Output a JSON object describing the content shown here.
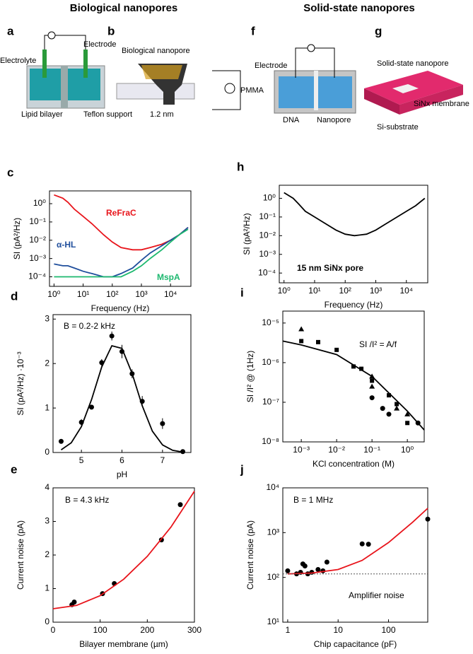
{
  "headings": [
    "Biological nanopores",
    "Solid-state nanopores"
  ],
  "panels": [
    {
      "label": "a",
      "texts": [
        "Electrode",
        "Electrolyte",
        "Lipid bilayer",
        "Teflon support"
      ]
    },
    {
      "label": "b",
      "texts": [
        "Biological nanopore",
        "1.2 nm"
      ]
    },
    {
      "label": "f",
      "texts": [
        "Electrode",
        "PMMA",
        "DNA",
        "Nanopore"
      ]
    },
    {
      "label": "g",
      "texts": [
        "Solid-state nanopore",
        "SiNx membrane",
        "Si-substrate"
      ]
    }
  ],
  "chart_data": [
    {
      "type": "line",
      "label": "c",
      "x_label": "Frequency (Hz)",
      "y_label": "SI (pA²/Hz)",
      "xscale": "log",
      "yscale": "log",
      "xlim": [
        0.7,
        50000
      ],
      "ylim": [
        3e-05,
        5
      ],
      "xticks": [
        {
          "value": 1,
          "label": "10⁰"
        },
        {
          "value": 10,
          "label": "10¹"
        },
        {
          "value": 100,
          "label": "10²"
        },
        {
          "value": 1000,
          "label": "10³"
        },
        {
          "value": 10000,
          "label": "10⁴"
        }
      ],
      "yticks": [
        {
          "value": 0.0001,
          "label": "10⁻⁴"
        },
        {
          "value": 0.001,
          "label": "10⁻³"
        },
        {
          "value": 0.01,
          "label": "10⁻²"
        },
        {
          "value": 0.1,
          "label": "10⁻¹"
        },
        {
          "value": 1,
          "label": "10⁰"
        }
      ],
      "x": [
        1,
        2,
        3,
        5,
        10,
        20,
        50,
        100,
        200,
        500,
        1000,
        2000,
        5000,
        10000,
        20000,
        40000
      ],
      "series": [
        {
          "name": "ReFraC",
          "color": "#e8141b",
          "values": [
            3,
            2,
            1.2,
            0.5,
            0.2,
            0.08,
            0.02,
            0.008,
            0.004,
            0.003,
            0.003,
            0.004,
            0.006,
            0.01,
            0.02,
            0.05
          ]
        },
        {
          "name": "α-HL",
          "color": "#1f4e9c",
          "values": [
            0.0005,
            0.0004,
            0.0004,
            0.0003,
            0.0002,
            0.00015,
            0.0001,
            0.0001,
            0.00015,
            0.0003,
            0.0008,
            0.002,
            0.005,
            0.01,
            0.02,
            0.05
          ]
        },
        {
          "name": "MspA",
          "color": "#1db86f",
          "values": [
            0.0001,
            0.0001,
            0.0001,
            0.0001,
            0.0001,
            0.0001,
            0.0001,
            0.0001,
            0.0001,
            0.0002,
            0.0004,
            0.001,
            0.003,
            0.008,
            0.02,
            0.04
          ]
        }
      ]
    },
    {
      "type": "line",
      "label": "h",
      "x_label": "Frequency (Hz)",
      "y_label": "SI (pA²/Hz)",
      "xscale": "log",
      "yscale": "log",
      "xlim": [
        0.7,
        50000
      ],
      "ylim": [
        3e-05,
        5
      ],
      "xticks": [
        {
          "value": 1,
          "label": "10⁰"
        },
        {
          "value": 10,
          "label": "10¹"
        },
        {
          "value": 100,
          "label": "10²"
        },
        {
          "value": 1000,
          "label": "10³"
        },
        {
          "value": 10000,
          "label": "10⁴"
        }
      ],
      "yticks": [
        {
          "value": 0.0001,
          "label": "10⁻⁴"
        },
        {
          "value": 0.001,
          "label": "10⁻³"
        },
        {
          "value": 0.01,
          "label": "10⁻²"
        },
        {
          "value": 0.1,
          "label": "10⁻¹"
        },
        {
          "value": 1,
          "label": "10⁰"
        }
      ],
      "annotations": [
        "15 nm SiNx pore"
      ],
      "x": [
        1,
        2,
        3,
        5,
        10,
        20,
        50,
        100,
        200,
        500,
        1000,
        2000,
        5000,
        10000,
        20000,
        40000
      ],
      "series": [
        {
          "color": "#000000",
          "values": [
            2,
            1,
            0.5,
            0.2,
            0.1,
            0.05,
            0.02,
            0.012,
            0.01,
            0.012,
            0.02,
            0.04,
            0.1,
            0.2,
            0.4,
            1
          ]
        }
      ]
    },
    {
      "type": "scatter",
      "label": "d",
      "x_label": "pH",
      "y_label": "SI (pA²/Hz) ·10⁻³",
      "xlim": [
        4.3,
        7.7
      ],
      "ylim": [
        0,
        3.1
      ],
      "xticks": [
        5,
        6,
        7
      ],
      "yticks": [
        0,
        1,
        2,
        3
      ],
      "annotations": [
        "B = 0.2-2 kHz"
      ],
      "series": [
        {
          "style": "markers",
          "marker": "circle",
          "color": "#000000",
          "x": [
            4.5,
            5.0,
            5.25,
            5.5,
            5.75,
            6.0,
            6.25,
            6.5,
            7.0,
            7.5
          ],
          "values": [
            0.25,
            0.68,
            1.02,
            2.02,
            2.62,
            2.27,
            1.77,
            1.15,
            0.65,
            0.02
          ],
          "errors": [
            0.05,
            0.07,
            0.05,
            0.08,
            0.1,
            0.15,
            0.1,
            0.12,
            0.12,
            0.02
          ]
        },
        {
          "style": "line",
          "color": "#000000",
          "x": [
            4.5,
            4.75,
            5,
            5.25,
            5.5,
            5.75,
            6,
            6.25,
            6.5,
            6.75,
            7,
            7.25,
            7.5
          ],
          "values": [
            0.06,
            0.22,
            0.58,
            1.19,
            1.92,
            2.4,
            2.34,
            1.78,
            1.05,
            0.48,
            0.17,
            0.05,
            0.01
          ]
        }
      ]
    },
    {
      "type": "scatter",
      "label": "i",
      "x_label": "KCl concentration (M)",
      "y_label": "SI /I² @ (1Hz)",
      "xscale": "log",
      "yscale": "log",
      "xlim": [
        0.0003,
        3
      ],
      "ylim": [
        1e-08,
        2e-05
      ],
      "xticks": [
        {
          "value": 0.001,
          "label": "10⁻³"
        },
        {
          "value": 0.01,
          "label": "10⁻²"
        },
        {
          "value": 0.1,
          "label": "10⁻¹"
        },
        {
          "value": 1,
          "label": "10⁰"
        }
      ],
      "yticks": [
        {
          "value": 1e-08,
          "label": "10⁻⁸"
        },
        {
          "value": 1e-07,
          "label": "10⁻⁷"
        },
        {
          "value": 1e-06,
          "label": "10⁻⁶"
        },
        {
          "value": 1e-05,
          "label": "10⁻⁵"
        }
      ],
      "annotations": [
        "SI /I² = A/f"
      ],
      "series": [
        {
          "style": "markers",
          "marker": "square",
          "color": "#000000",
          "x": [
            0.001,
            0.003,
            0.01,
            0.03,
            0.05,
            0.1,
            0.3,
            0.5,
            1
          ],
          "values": [
            3.5e-06,
            3.3e-06,
            2.1e-06,
            8e-07,
            7e-07,
            3.5e-07,
            1.5e-07,
            9e-08,
            3e-08
          ]
        },
        {
          "style": "markers",
          "marker": "triangle",
          "color": "#000000",
          "x": [
            0.001,
            0.1,
            0.1,
            0.5,
            1
          ],
          "values": [
            7e-06,
            4.5e-07,
            2.5e-07,
            7e-08,
            5e-08
          ]
        },
        {
          "style": "markers",
          "marker": "circle",
          "color": "#000000",
          "x": [
            0.1,
            0.2,
            0.3,
            2
          ],
          "values": [
            1.3e-07,
            7e-08,
            5e-08,
            3e-08
          ]
        },
        {
          "style": "line",
          "color": "#000000",
          "x": [
            0.0003,
            0.001,
            0.01,
            0.1,
            1,
            3
          ],
          "values": [
            3.5e-06,
            2.8e-06,
            1.6e-06,
            4.5e-07,
            6e-08,
            2e-08
          ]
        }
      ]
    },
    {
      "type": "scatter",
      "label": "e",
      "x_label": "Bilayer membrane (µm)",
      "y_label": "Current noise (pA)",
      "xlim": [
        0,
        300
      ],
      "ylim": [
        0,
        4
      ],
      "xticks": [
        0,
        100,
        200,
        300
      ],
      "yticks": [
        0,
        1,
        2,
        3,
        4
      ],
      "annotations": [
        "B = 4.3 kHz"
      ],
      "series": [
        {
          "style": "markers",
          "marker": "circle",
          "color": "#000000",
          "x": [
            40,
            45,
            105,
            130,
            230,
            270
          ],
          "values": [
            0.52,
            0.6,
            0.85,
            1.15,
            2.45,
            3.5
          ]
        },
        {
          "style": "line",
          "color": "#e8141b",
          "x": [
            0,
            50,
            100,
            150,
            200,
            250,
            300
          ],
          "values": [
            0.4,
            0.5,
            0.79,
            1.28,
            1.96,
            2.83,
            3.9
          ]
        }
      ]
    },
    {
      "type": "scatter",
      "label": "j",
      "x_label": "Chip capacitance (pF)",
      "y_label": "Current noise (pA)",
      "xscale": "log",
      "yscale": "log",
      "xlim": [
        0.8,
        600
      ],
      "ylim": [
        10,
        10000
      ],
      "xticks": [
        1,
        10,
        100
      ],
      "yticks": [
        {
          "value": 10,
          "label": "10¹"
        },
        {
          "value": 100,
          "label": "10²"
        },
        {
          "value": 1000,
          "label": "10³"
        },
        {
          "value": 10000,
          "label": "10⁴"
        }
      ],
      "annotations": [
        "B = 1 MHz"
      ],
      "series": [
        {
          "style": "markers",
          "marker": "circle",
          "color": "#000000",
          "x": [
            1,
            1.5,
            1.8,
            2,
            2.2,
            2.5,
            3,
            4,
            5,
            6,
            30,
            40,
            600
          ],
          "values": [
            140,
            120,
            130,
            200,
            180,
            120,
            130,
            150,
            140,
            220,
            560,
            550,
            2000
          ]
        },
        {
          "style": "line",
          "color": "#e8141b",
          "x": [
            1,
            3,
            10,
            30,
            100,
            300,
            600
          ],
          "values": [
            120,
            125,
            150,
            240,
            600,
            1700,
            3500
          ]
        },
        {
          "name": "Amplifier noise",
          "style": "dotted",
          "color": "#555555",
          "x": [
            0.8,
            600
          ],
          "values": [
            120,
            120
          ]
        }
      ]
    }
  ]
}
